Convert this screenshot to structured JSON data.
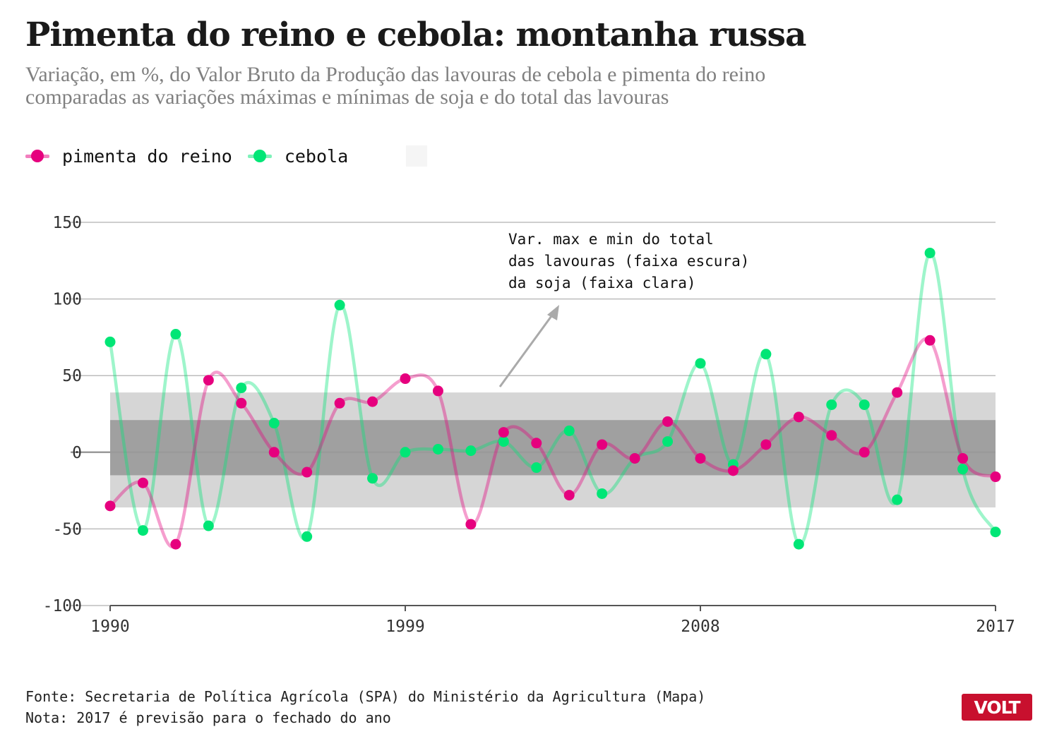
{
  "header": {
    "title": "Pimenta do reino e cebola: montanha russa",
    "subtitle_line1": "Variação, em %, do Valor Bruto da Produção das lavouras de cebola e pimenta do reino",
    "subtitle_line2": "comparadas as variações máximas e mínimas de soja e do total das lavouras"
  },
  "legend": {
    "items": [
      {
        "label": "pimenta do reino",
        "color": "#e6007e"
      },
      {
        "label": "cebola",
        "color": "#00e676"
      }
    ]
  },
  "annotation": {
    "lines": [
      "Var. max e min do total",
      "das lavouras (faixa escura)",
      "da soja (faixa clara)"
    ]
  },
  "footer": {
    "source": "Fonte: Secretaria de Política Agrícola (SPA) do Ministério da Agricultura (Mapa)",
    "note": "Nota: 2017 é previsão para o fechado do ano"
  },
  "logo": {
    "text": "VOLT",
    "color": "#c8102e"
  },
  "chart_data": {
    "type": "line",
    "xlim": [
      1990,
      2017
    ],
    "ylim": [
      -100,
      150
    ],
    "x_ticks": [
      1990,
      1999,
      2008,
      2017
    ],
    "y_ticks": [
      -100,
      -50,
      0,
      50,
      100,
      150
    ],
    "grid": true,
    "bands": [
      {
        "range": [
          -36,
          39
        ],
        "color": "#d6d6d6"
      },
      {
        "range": [
          -15,
          21
        ],
        "color": "#a0a0a0"
      }
    ],
    "x": [
      1990,
      1991,
      1992,
      1993,
      1994,
      1995,
      1996,
      1997,
      1998,
      1999,
      2000,
      2001,
      2002,
      2003,
      2004,
      2005,
      2006,
      2007,
      2008,
      2009,
      2010,
      2011,
      2012,
      2013,
      2014,
      2015,
      2016,
      2017
    ],
    "series": [
      {
        "name": "pimenta do reino",
        "color": "#e6007e",
        "values": [
          -35,
          -20,
          -60,
          47,
          32,
          0,
          -13,
          32,
          33,
          48,
          40,
          -47,
          13,
          6,
          -28,
          5,
          -4,
          20,
          -4,
          -12,
          5,
          23,
          11,
          0,
          39,
          73,
          -4,
          -16
        ]
      },
      {
        "name": "cebola",
        "color": "#00e676",
        "values": [
          72,
          -51,
          77,
          -48,
          42,
          19,
          -55,
          96,
          -17,
          0,
          2,
          1,
          7,
          -10,
          14,
          -27,
          -4,
          7,
          58,
          -8,
          64,
          -60,
          31,
          31,
          -31,
          130,
          -11,
          -52
        ]
      }
    ]
  }
}
